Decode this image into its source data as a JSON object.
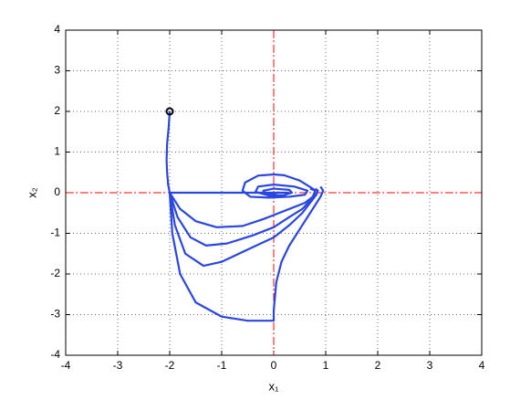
{
  "chart_data": {
    "type": "line",
    "xlabel": "x₁",
    "ylabel": "x₂",
    "xlim": [
      -4,
      4
    ],
    "ylim": [
      -4,
      4
    ],
    "xticks": [
      -4,
      -3,
      -2,
      -1,
      0,
      1,
      2,
      3,
      4
    ],
    "yticks": [
      -4,
      -3,
      -2,
      -1,
      0,
      1,
      2,
      3,
      4
    ],
    "grid": true,
    "reference_lines": {
      "x": [
        0
      ],
      "y": [
        0
      ],
      "color": "#ff0000"
    },
    "markers": [
      {
        "x": -2,
        "y": 2,
        "color": "#000000"
      }
    ],
    "series": [
      {
        "color": "#2a46e0",
        "x": [
          -2,
          -2.02,
          -2.05,
          -2.06,
          -2.05,
          -2.03,
          -2
        ],
        "y": [
          2,
          1.6,
          1.2,
          0.8,
          0.5,
          0.2,
          0
        ]
      },
      {
        "color": "#2a46e0",
        "x": [
          -2,
          -1,
          0,
          0.3
        ],
        "y": [
          0,
          0,
          0,
          0
        ]
      },
      {
        "color": "#2a46e0",
        "x": [
          -2,
          -1.8,
          -1.5,
          -1.1,
          -0.6,
          -0.2,
          0,
          0.3,
          0.6,
          0.75,
          0.8,
          0.7
        ],
        "y": [
          0,
          -0.4,
          -0.7,
          -0.85,
          -0.82,
          -0.65,
          -0.55,
          -0.4,
          -0.25,
          -0.1,
          0.05,
          0.1
        ]
      },
      {
        "color": "#2a46e0",
        "x": [
          -2,
          -1.85,
          -1.6,
          -1.3,
          -0.9,
          -0.4,
          0,
          0.3,
          0.55,
          0.7,
          0.78,
          0.8,
          0.75
        ],
        "y": [
          0,
          -0.6,
          -1.1,
          -1.3,
          -1.25,
          -1.05,
          -0.85,
          -0.6,
          -0.4,
          -0.2,
          -0.05,
          0.05,
          0.1
        ]
      },
      {
        "color": "#2a46e0",
        "x": [
          -2,
          -1.9,
          -1.7,
          -1.35,
          -1,
          -0.5,
          0,
          0.3,
          0.55,
          0.7,
          0.82,
          0.85,
          0.8
        ],
        "y": [
          0,
          -0.8,
          -1.5,
          -1.8,
          -1.7,
          -1.4,
          -1.1,
          -0.8,
          -0.5,
          -0.25,
          -0.05,
          0.05,
          0.1
        ]
      },
      {
        "color": "#2a46e0",
        "x": [
          -2,
          -1.95,
          -1.8,
          -1.5,
          -1,
          -0.5,
          0,
          0,
          0.05,
          0.15,
          0.3,
          0.5,
          0.65,
          0.8,
          0.9,
          0.95,
          0.9
        ],
        "y": [
          0,
          -1,
          -2,
          -2.7,
          -3.05,
          -3.15,
          -3.15,
          -2.9,
          -2.2,
          -1.7,
          -1.3,
          -0.9,
          -0.6,
          -0.3,
          -0.1,
          0.05,
          0.15
        ]
      },
      {
        "color": "#2a46e0",
        "x": [
          0.75,
          0.5,
          0.2,
          0,
          -0.3,
          -0.55,
          -0.6,
          -0.45,
          -0.1,
          0.3,
          0.6,
          0.65,
          0.4,
          0,
          -0.3,
          -0.35,
          -0.1,
          0.2,
          0.35,
          0.3,
          0,
          -0.2,
          -0.15,
          0,
          0.1
        ],
        "y": [
          0.1,
          0.3,
          0.43,
          0.45,
          0.42,
          0.25,
          0.05,
          -0.1,
          -0.12,
          -0.1,
          -0.05,
          0.05,
          0.15,
          0.2,
          0.15,
          0.02,
          -0.07,
          -0.06,
          0,
          0.07,
          0.1,
          0.05,
          -0.03,
          -0.03,
          0.01
        ]
      }
    ]
  }
}
